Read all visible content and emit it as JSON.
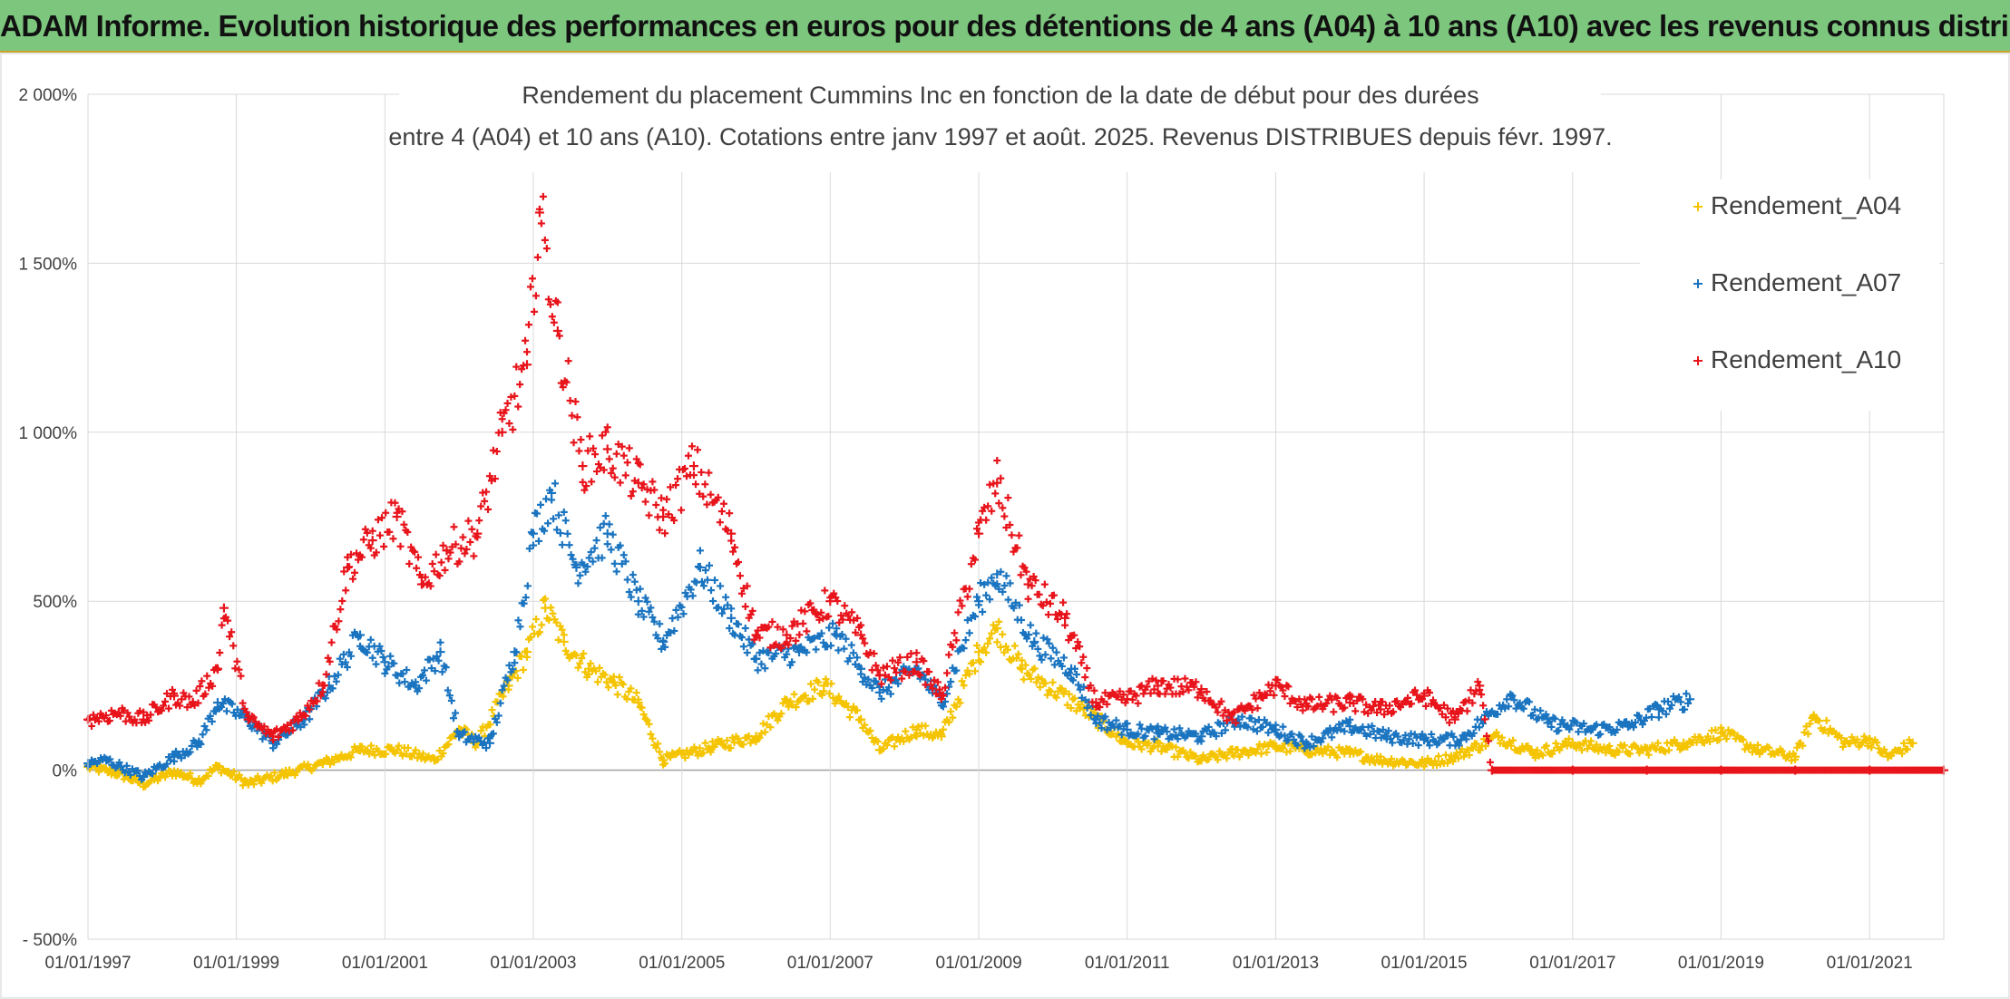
{
  "header": {
    "title": "ADAM Informe. Evolution historique des performances en euros pour des détentions de 4 ans (A04) à 10 ans (A10) avec les revenus connus distribués"
  },
  "colors": {
    "header_bg": "#7dc67e",
    "A04": "#f5c400",
    "A07": "#1a74c0",
    "A10": "#e8141b",
    "grid": "#d9d9d9",
    "zero_line": "#a6a6a6"
  },
  "chart_data": {
    "type": "scatter",
    "title_line1": "Rendement du placement Cummins Inc en fonction de la date de début pour des durées",
    "title_line2": "entre 4 (A04) et 10 ans (A10). Cotations entre janv 1997 et août. 2025. Revenus DISTRIBUES depuis févr. 1997.",
    "xlabel": "",
    "ylabel": "",
    "x_range": [
      "1997-01-01",
      "2022-01-01"
    ],
    "x_tick_labels": [
      "01/01/1997",
      "01/01/1999",
      "01/01/2001",
      "01/01/2003",
      "01/01/2005",
      "01/01/2007",
      "01/01/2009",
      "01/01/2011",
      "01/01/2013",
      "01/01/2015",
      "01/01/2017",
      "01/01/2019",
      "01/01/2021"
    ],
    "ylim": [
      -500,
      2000
    ],
    "y_ticks": [
      -500,
      0,
      500,
      1000,
      1500,
      2000
    ],
    "y_tick_labels": [
      "- 500%",
      "0%",
      "500%",
      "1 000%",
      "1 500%",
      "2 000%"
    ],
    "grid": true,
    "legend_position": "top-right",
    "marker": "+",
    "series": [
      {
        "name": "Rendement_A04",
        "color_key": "A04",
        "points": [
          [
            "1997-01-01",
            10
          ],
          [
            "1997-06-01",
            -10
          ],
          [
            "1997-10-01",
            -40
          ],
          [
            "1998-03-01",
            -5
          ],
          [
            "1998-07-01",
            -30
          ],
          [
            "1998-10-01",
            10
          ],
          [
            "1999-03-01",
            -40
          ],
          [
            "1999-09-01",
            -10
          ],
          [
            "2000-03-01",
            20
          ],
          [
            "2000-09-01",
            60
          ],
          [
            "2001-03-01",
            60
          ],
          [
            "2001-09-01",
            30
          ],
          [
            "2002-01-01",
            120
          ],
          [
            "2002-04-01",
            80
          ],
          [
            "2002-09-01",
            250
          ],
          [
            "2002-12-01",
            350
          ],
          [
            "2003-03-01",
            480
          ],
          [
            "2003-06-01",
            380
          ],
          [
            "2003-10-01",
            300
          ],
          [
            "2004-02-01",
            260
          ],
          [
            "2004-06-01",
            200
          ],
          [
            "2004-10-01",
            30
          ],
          [
            "2005-06-01",
            70
          ],
          [
            "2006-01-01",
            100
          ],
          [
            "2006-06-01",
            200
          ],
          [
            "2006-12-01",
            250
          ],
          [
            "2007-06-01",
            150
          ],
          [
            "2007-09-01",
            60
          ],
          [
            "2008-03-01",
            120
          ],
          [
            "2008-07-01",
            100
          ],
          [
            "2009-01-01",
            350
          ],
          [
            "2009-04-01",
            420
          ],
          [
            "2009-08-01",
            300
          ],
          [
            "2010-06-01",
            180
          ],
          [
            "2011-01-01",
            80
          ],
          [
            "2011-06-01",
            70
          ],
          [
            "2012-01-01",
            30
          ],
          [
            "2012-06-01",
            50
          ],
          [
            "2013-01-01",
            70
          ],
          [
            "2013-06-01",
            60
          ],
          [
            "2014-01-01",
            50
          ],
          [
            "2014-06-01",
            30
          ],
          [
            "2015-01-01",
            20
          ],
          [
            "2015-06-01",
            40
          ],
          [
            "2016-01-01",
            100
          ],
          [
            "2016-07-01",
            50
          ],
          [
            "2017-01-01",
            80
          ],
          [
            "2017-07-01",
            60
          ],
          [
            "2018-01-01",
            60
          ],
          [
            "2018-07-01",
            80
          ],
          [
            "2019-01-01",
            110
          ],
          [
            "2019-07-01",
            60
          ],
          [
            "2020-01-01",
            40
          ],
          [
            "2020-04-01",
            160
          ],
          [
            "2020-09-01",
            80
          ],
          [
            "2021-01-01",
            90
          ],
          [
            "2021-04-01",
            40
          ],
          [
            "2021-08-01",
            80
          ]
        ]
      },
      {
        "name": "Rendement_A07",
        "color_key": "A07",
        "points": [
          [
            "1997-01-01",
            20
          ],
          [
            "1997-04-01",
            30
          ],
          [
            "1997-10-01",
            -20
          ],
          [
            "1998-03-01",
            40
          ],
          [
            "1998-07-01",
            80
          ],
          [
            "1998-10-01",
            200
          ],
          [
            "1999-03-01",
            150
          ],
          [
            "1999-07-01",
            80
          ],
          [
            "1999-12-01",
            150
          ],
          [
            "2000-04-01",
            250
          ],
          [
            "2000-09-01",
            400
          ],
          [
            "2001-01-01",
            320
          ],
          [
            "2001-06-01",
            250
          ],
          [
            "2001-10-01",
            350
          ],
          [
            "2002-01-01",
            100
          ],
          [
            "2002-06-01",
            80
          ],
          [
            "2002-10-01",
            350
          ],
          [
            "2003-01-01",
            700
          ],
          [
            "2003-04-01",
            820
          ],
          [
            "2003-08-01",
            600
          ],
          [
            "2004-01-01",
            700
          ],
          [
            "2004-06-01",
            500
          ],
          [
            "2004-10-01",
            380
          ],
          [
            "2005-04-01",
            600
          ],
          [
            "2005-09-01",
            450
          ],
          [
            "2006-01-01",
            330
          ],
          [
            "2006-08-01",
            350
          ],
          [
            "2007-02-01",
            400
          ],
          [
            "2007-06-01",
            300
          ],
          [
            "2007-09-01",
            230
          ],
          [
            "2008-03-01",
            300
          ],
          [
            "2008-07-01",
            200
          ],
          [
            "2009-01-01",
            500
          ],
          [
            "2009-04-01",
            580
          ],
          [
            "2009-10-01",
            380
          ],
          [
            "2010-04-01",
            300
          ],
          [
            "2010-08-01",
            150
          ],
          [
            "2011-01-01",
            120
          ],
          [
            "2011-06-01",
            110
          ],
          [
            "2012-01-01",
            100
          ],
          [
            "2012-07-01",
            150
          ],
          [
            "2013-01-01",
            120
          ],
          [
            "2013-06-01",
            80
          ],
          [
            "2014-01-01",
            130
          ],
          [
            "2014-07-01",
            100
          ],
          [
            "2015-01-01",
            90
          ],
          [
            "2015-07-01",
            90
          ],
          [
            "2016-03-01",
            220
          ],
          [
            "2016-09-01",
            140
          ],
          [
            "2017-04-01",
            120
          ],
          [
            "2017-10-01",
            130
          ],
          [
            "2018-03-01",
            180
          ],
          [
            "2018-08-01",
            210
          ]
        ]
      },
      {
        "name": "Rendement_A10",
        "color_key": "A10",
        "points": [
          [
            "1997-01-01",
            150
          ],
          [
            "1997-06-01",
            170
          ],
          [
            "1997-10-01",
            150
          ],
          [
            "1998-03-01",
            220
          ],
          [
            "1998-06-01",
            200
          ],
          [
            "1998-10-01",
            300
          ],
          [
            "1998-11-01",
            480
          ],
          [
            "1999-03-01",
            150
          ],
          [
            "1999-07-01",
            100
          ],
          [
            "1999-11-01",
            150
          ],
          [
            "2000-03-01",
            250
          ],
          [
            "2000-07-01",
            600
          ],
          [
            "2000-11-01",
            680
          ],
          [
            "2001-03-01",
            750
          ],
          [
            "2001-07-01",
            550
          ],
          [
            "2001-11-01",
            650
          ],
          [
            "2002-04-01",
            700
          ],
          [
            "2002-08-01",
            1000
          ],
          [
            "2002-12-01",
            1200
          ],
          [
            "2003-02-01",
            1650
          ],
          [
            "2003-05-01",
            1300
          ],
          [
            "2003-09-01",
            900
          ],
          [
            "2004-01-01",
            950
          ],
          [
            "2004-06-01",
            850
          ],
          [
            "2004-10-01",
            750
          ],
          [
            "2005-03-01",
            900
          ],
          [
            "2005-09-01",
            700
          ],
          [
            "2006-01-01",
            400
          ],
          [
            "2006-06-01",
            400
          ],
          [
            "2007-01-01",
            500
          ],
          [
            "2007-06-01",
            400
          ],
          [
            "2007-09-01",
            280
          ],
          [
            "2008-03-01",
            320
          ],
          [
            "2008-07-01",
            220
          ],
          [
            "2009-01-01",
            700
          ],
          [
            "2009-04-01",
            850
          ],
          [
            "2009-09-01",
            550
          ],
          [
            "2010-03-01",
            450
          ],
          [
            "2010-08-01",
            200
          ],
          [
            "2011-01-01",
            210
          ],
          [
            "2011-06-01",
            250
          ],
          [
            "2012-01-01",
            240
          ],
          [
            "2012-06-01",
            150
          ],
          [
            "2013-01-01",
            250
          ],
          [
            "2013-06-01",
            190
          ],
          [
            "2014-01-01",
            200
          ],
          [
            "2014-06-01",
            180
          ],
          [
            "2015-01-01",
            220
          ],
          [
            "2015-06-01",
            150
          ],
          [
            "2015-10-01",
            250
          ],
          [
            "2015-12-01",
            0
          ],
          [
            "2017-01-01",
            0
          ],
          [
            "2018-01-01",
            0
          ],
          [
            "2019-01-01",
            0
          ],
          [
            "2020-01-01",
            0
          ],
          [
            "2021-01-01",
            0
          ],
          [
            "2022-01-01",
            0
          ]
        ]
      }
    ]
  }
}
